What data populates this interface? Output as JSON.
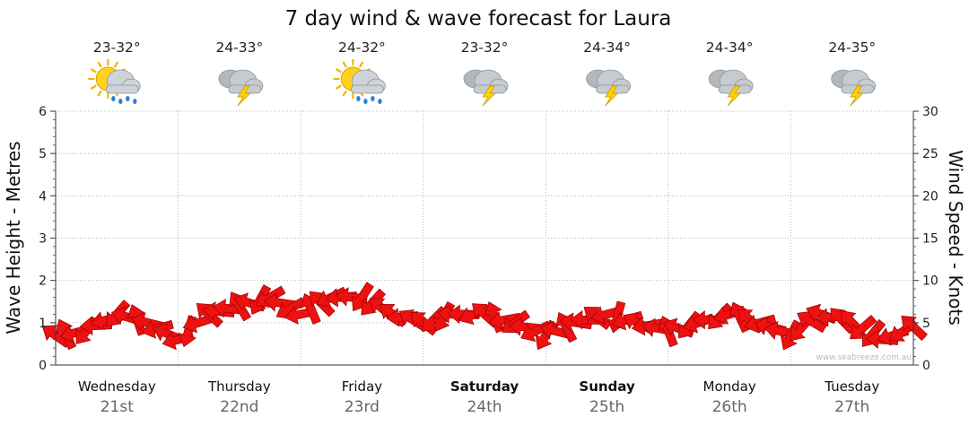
{
  "chart_data": {
    "type": "line",
    "title": "7 day wind & wave forecast for Laura",
    "ylabel_left": "Wave Height - Metres",
    "ylabel_right": "Wind Speed - Knots",
    "ylim_left": [
      0,
      6
    ],
    "ylim_right": [
      0,
      30
    ],
    "yticks_left": [
      "0",
      "1",
      "2",
      "3",
      "4",
      "5",
      "6"
    ],
    "yticks_right": [
      "0",
      "5",
      "10",
      "15",
      "20",
      "25",
      "30"
    ],
    "grid": true,
    "credit": "www.seabreeze.com.au",
    "days": [
      {
        "day": "Wednesday",
        "date": "21st",
        "temp": "23-32°",
        "icon": "sun-cloud-rain-icon",
        "bold": false
      },
      {
        "day": "Thursday",
        "date": "22nd",
        "temp": "24-33°",
        "icon": "cloud-storm-icon",
        "bold": false
      },
      {
        "day": "Friday",
        "date": "23rd",
        "temp": "24-32°",
        "icon": "sun-cloud-rain-icon",
        "bold": false
      },
      {
        "day": "Saturday",
        "date": "24th",
        "temp": "23-32°",
        "icon": "cloud-storm-icon",
        "bold": true
      },
      {
        "day": "Sunday",
        "date": "25th",
        "temp": "24-34°",
        "icon": "cloud-storm-icon",
        "bold": true
      },
      {
        "day": "Monday",
        "date": "26th",
        "temp": "24-34°",
        "icon": "cloud-storm-icon",
        "bold": false
      },
      {
        "day": "Tuesday",
        "date": "27th",
        "temp": "24-35°",
        "icon": "cloud-storm-icon",
        "bold": false
      }
    ],
    "series": [
      {
        "name": "Wind",
        "color": "#ee1111",
        "unit": "knots",
        "x_hours": [
          0,
          6,
          12,
          18,
          24,
          30,
          36,
          42,
          48,
          54,
          60,
          66,
          72,
          78,
          84,
          90,
          96,
          102,
          108,
          114,
          120,
          126,
          132,
          138,
          144,
          150,
          156,
          162,
          168
        ],
        "values": [
          3.5,
          4,
          6,
          5,
          3,
          6,
          7,
          8,
          6,
          8,
          8,
          6,
          5,
          6,
          6,
          5,
          3.5,
          5,
          6,
          5,
          4,
          5,
          6,
          5,
          3.5,
          6,
          5,
          3,
          4.5
        ]
      }
    ]
  }
}
